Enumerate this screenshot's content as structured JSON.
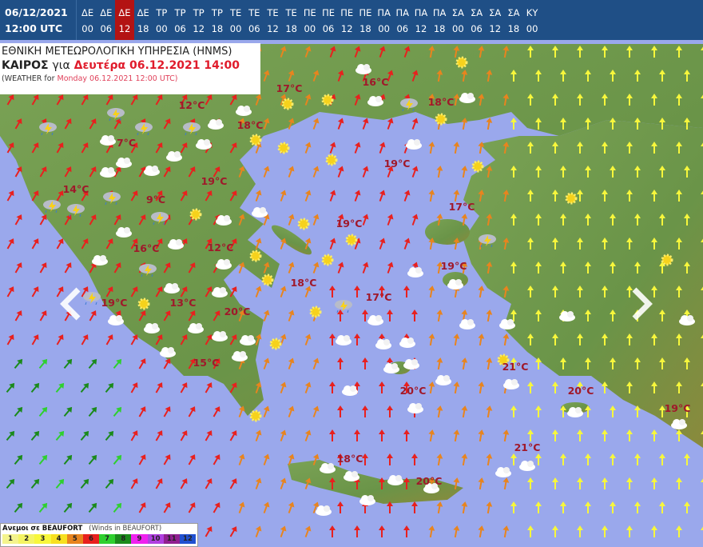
{
  "header": {
    "date": "06/12/2021",
    "time": "12:00 UTC",
    "steps": [
      {
        "day": "ΔΕ",
        "hour": "00"
      },
      {
        "day": "ΔΕ",
        "hour": "06"
      },
      {
        "day": "ΔΕ",
        "hour": "12",
        "active": true
      },
      {
        "day": "ΔΕ",
        "hour": "18"
      },
      {
        "day": "ΤΡ",
        "hour": "00"
      },
      {
        "day": "ΤΡ",
        "hour": "06"
      },
      {
        "day": "ΤΡ",
        "hour": "12"
      },
      {
        "day": "ΤΡ",
        "hour": "18"
      },
      {
        "day": "ΤΕ",
        "hour": "00"
      },
      {
        "day": "ΤΕ",
        "hour": "06"
      },
      {
        "day": "ΤΕ",
        "hour": "12"
      },
      {
        "day": "ΤΕ",
        "hour": "18"
      },
      {
        "day": "ΠΕ",
        "hour": "00"
      },
      {
        "day": "ΠΕ",
        "hour": "06"
      },
      {
        "day": "ΠΕ",
        "hour": "12"
      },
      {
        "day": "ΠΕ",
        "hour": "18"
      },
      {
        "day": "ΠΑ",
        "hour": "00"
      },
      {
        "day": "ΠΑ",
        "hour": "06"
      },
      {
        "day": "ΠΑ",
        "hour": "12"
      },
      {
        "day": "ΠΑ",
        "hour": "18"
      },
      {
        "day": "ΣΑ",
        "hour": "00"
      },
      {
        "day": "ΣΑ",
        "hour": "06"
      },
      {
        "day": "ΣΑ",
        "hour": "12"
      },
      {
        "day": "ΣΑ",
        "hour": "18"
      },
      {
        "day": "ΚΥ",
        "hour": "00"
      }
    ]
  },
  "title": {
    "agency": "ΕΘΝΙΚΗ ΜΕΤΕΩΡΟΛΟΓΙΚΗ ΥΠΗΡΕΣΙΑ (HNMS)",
    "weather_label": "ΚΑΙΡΟΣ",
    "for_label": "για",
    "datetime_local": "Δευτέρα 06.12.2021 14:00",
    "en_prefix": "(WEATHER for",
    "en_datetime": "Monday 06.12.2021 12:00 UTC)"
  },
  "temperatures": [
    "17°C",
    "16°C",
    "12°C",
    "18°C",
    "18°C",
    "7°C",
    "19°C",
    "19°C",
    "14°C",
    "9°C",
    "17°C",
    "19°C",
    "16°C",
    "12°C",
    "19°C",
    "18°C",
    "17°C",
    "19°C",
    "13°C",
    "20°C",
    "15°C",
    "21°C",
    "20°C",
    "20°C",
    "19°C",
    "21°C",
    "18°C",
    "20°C"
  ],
  "legend": {
    "title": "Ανεμοι σε BEAUFORT",
    "subtitle": "(Winds in BEAUFORT)",
    "scale": [
      {
        "v": "1",
        "c": "#f4f48c"
      },
      {
        "v": "2",
        "c": "#f4f464"
      },
      {
        "v": "3",
        "c": "#f7f73c"
      },
      {
        "v": "4",
        "c": "#f7e020"
      },
      {
        "v": "5",
        "c": "#e8841e"
      },
      {
        "v": "6",
        "c": "#e8201e"
      },
      {
        "v": "7",
        "c": "#2ed02e"
      },
      {
        "v": "8",
        "c": "#1a8a1a"
      },
      {
        "v": "9",
        "c": "#ee22ee"
      },
      {
        "v": "10",
        "c": "#b040e0"
      },
      {
        "v": "11",
        "c": "#902090"
      },
      {
        "v": "12",
        "c": "#2050d0"
      }
    ]
  },
  "colors": {
    "sea": "#9aa8ec",
    "land": "#6f9a4e",
    "temperature_text": "#a0182a",
    "header_bg": "#1f4f86",
    "active_step": "#b31313"
  },
  "icons": {
    "prev": "chevron-left-icon",
    "next": "chevron-right-icon",
    "weather": [
      "cloud-icon",
      "sun-icon",
      "thunderstorm-icon",
      "rain-icon"
    ]
  }
}
